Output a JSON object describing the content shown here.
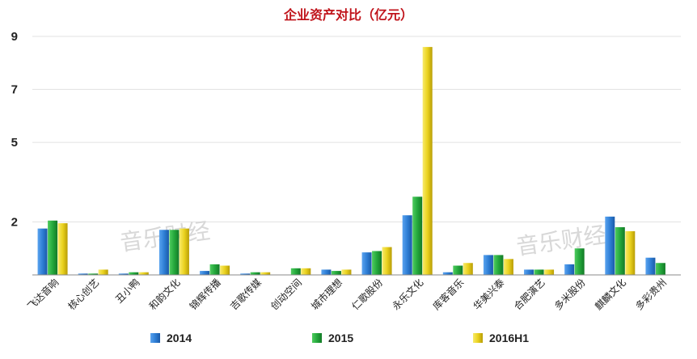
{
  "chart_data": {
    "type": "bar",
    "title": "企业资产对比（亿元）",
    "xlabel": "",
    "ylabel": "",
    "ylim": [
      0,
      9
    ],
    "yticks": [
      2,
      5,
      7,
      9
    ],
    "grid": true,
    "legend_position": "bottom",
    "categories": [
      "飞达音响",
      "核心创艺",
      "丑小鸭",
      "和韵文化",
      "锦辉传播",
      "吉歌传媒",
      "创动空间",
      "城市理想",
      "仁歌股份",
      "永乐文化",
      "库客音乐",
      "华美兴泰",
      "合肥演艺",
      "多米股份",
      "麒麟文化",
      "多彩贵州"
    ],
    "series": [
      {
        "name": "2014",
        "values": [
          1.75,
          0.05,
          0.05,
          1.7,
          0.15,
          0.05,
          0.0,
          0.2,
          0.85,
          2.25,
          0.1,
          0.75,
          0.2,
          0.4,
          2.2,
          0.65
        ]
      },
      {
        "name": "2015",
        "values": [
          2.05,
          0.05,
          0.1,
          1.7,
          0.4,
          0.1,
          0.25,
          0.15,
          0.9,
          2.95,
          0.35,
          0.75,
          0.2,
          1.0,
          1.8,
          0.45
        ]
      },
      {
        "name": "2016H1",
        "values": [
          1.95,
          0.2,
          0.1,
          1.75,
          0.35,
          0.1,
          0.25,
          0.2,
          1.05,
          8.6,
          0.45,
          0.6,
          0.2,
          0.0,
          1.65,
          0.0
        ]
      }
    ],
    "colors": {
      "2014": "#2f7fd6",
      "2015": "#24a83c",
      "2016H1": "#e8cf1e",
      "title": "#c0141b"
    }
  },
  "watermark": "音乐财经"
}
